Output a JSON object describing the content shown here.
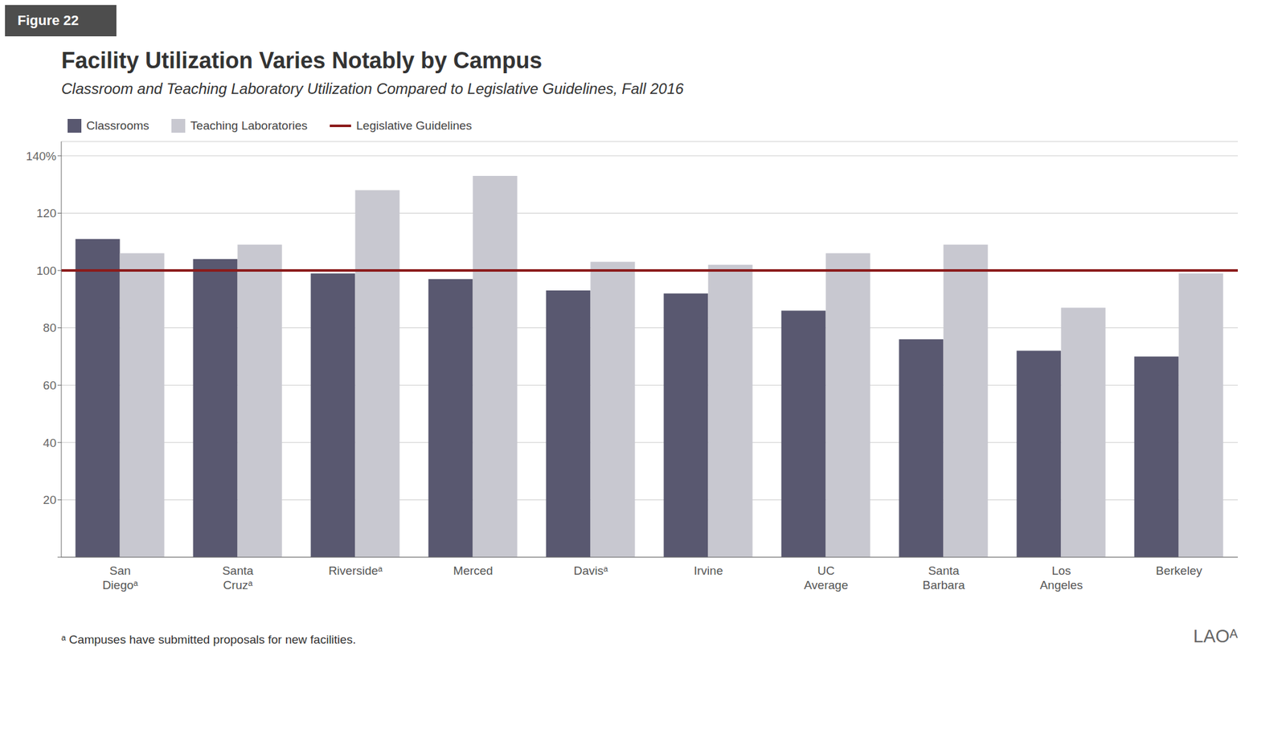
{
  "chart_data": {
    "type": "bar",
    "title": "Facility Utilization Varies Notably by Campus",
    "subtitle": "Classroom and Teaching Laboratory Utilization Compared to Legislative Guidelines, Fall 2016",
    "annotations": [
      "Figure 22",
      "ᵃ Campuses have submitted proposals for new facilities.",
      "LAOᴬ"
    ],
    "categories": [
      "San\nDiegoᵃ",
      "Santa\nCruzᵃ",
      "Riversideᵃ",
      "Merced",
      "Davisᵃ",
      "Irvine",
      "UC\nAverage",
      "Santa\nBarbara",
      "Los\nAngeles",
      "Berkeley"
    ],
    "series": [
      {
        "name": "Classrooms",
        "color": "#595870",
        "values": [
          111,
          104,
          99,
          97,
          93,
          92,
          86,
          76,
          72,
          70
        ]
      },
      {
        "name": "Teaching Laboratories",
        "color": "#c8c8d0",
        "values": [
          106,
          109,
          128,
          133,
          103,
          102,
          106,
          109,
          87,
          99
        ]
      }
    ],
    "guideline": {
      "name": "Legislative Guidelines",
      "value": 100,
      "color": "#8b1a1a"
    },
    "ylim": [
      0,
      145
    ],
    "yticks": [
      {
        "value": 0,
        "label": ""
      },
      20,
      40,
      60,
      80,
      100,
      120,
      {
        "value": 140,
        "label": "140%"
      }
    ],
    "grid": true,
    "legend": "upper left"
  }
}
